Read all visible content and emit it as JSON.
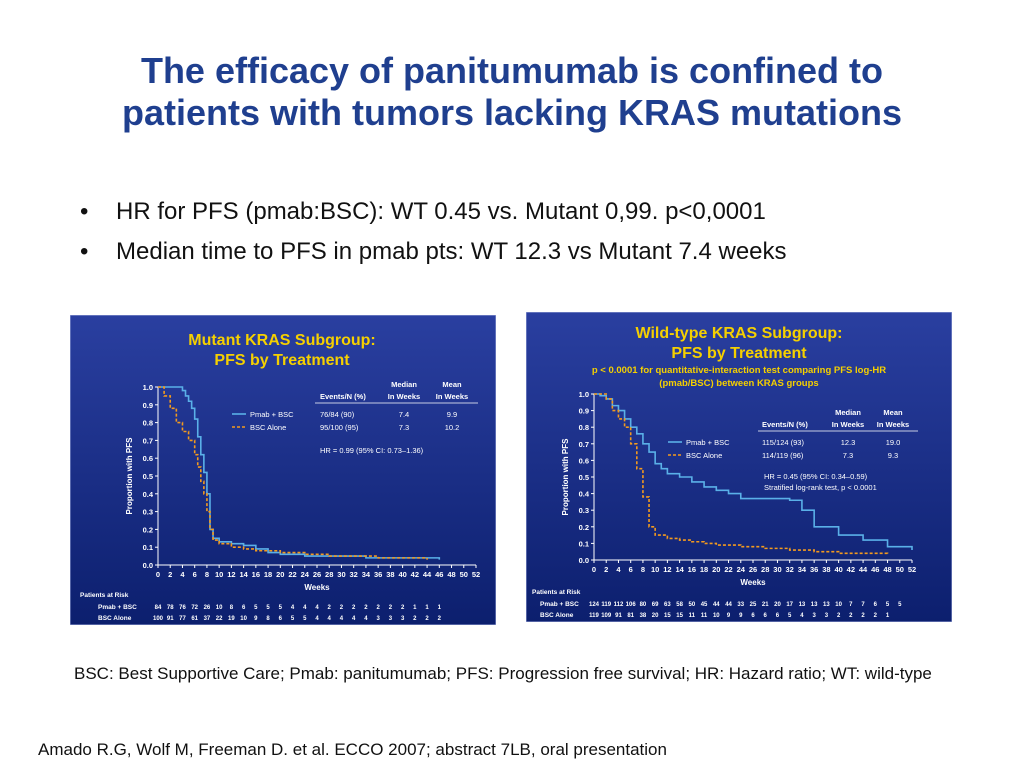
{
  "slide": {
    "title_line1": "The efficacy of panitumumab is confined to",
    "title_line2": "patients with tumors lacking KRAS mutations",
    "bullets": [
      "HR for PFS (pmab:BSC): WT 0.45 vs. Mutant 0,99. p<0,0001",
      "Median time to PFS in pmab pts: WT 12.3 vs Mutant 7.4 weeks"
    ],
    "footnote": "BSC: Best Supportive Care; Pmab: panitumumab; PFS: Progression free survival; HR: Hazard ratio; WT: wild-type",
    "citation": "Amado R.G, Wolf M, Freeman D. et al. ECCO 2007; abstract 7LB, oral presentation"
  },
  "colors": {
    "title": "#1f3f8f",
    "panel_bg": "#0c1f6e",
    "panel_title": "#f5d000",
    "pmab": "#5ab0e8",
    "bsc": "#f39a1e"
  },
  "chart_data": [
    {
      "type": "line",
      "title_line1": "Mutant KRAS Subgroup:",
      "title_line2": "PFS by Treatment",
      "subtitle_line1": "",
      "subtitle_line2": "",
      "xlabel": "Weeks",
      "ylabel": "Proportion with PFS",
      "xlim": [
        0,
        52
      ],
      "ylim": [
        0,
        1
      ],
      "x_ticks": [
        0,
        2,
        4,
        6,
        8,
        10,
        12,
        14,
        16,
        18,
        20,
        22,
        24,
        26,
        28,
        30,
        32,
        34,
        36,
        38,
        40,
        42,
        44,
        46,
        48,
        50,
        52
      ],
      "y_ticks": [
        "0.0",
        "0.1",
        "0.2",
        "0.3",
        "0.4",
        "0.5",
        "0.6",
        "0.7",
        "0.8",
        "0.9",
        "1.0"
      ],
      "table_headers": [
        "Events/N (%)",
        "Median",
        "In Weeks",
        "Mean",
        "In Weeks"
      ],
      "series": [
        {
          "name": "Pmab + BSC",
          "events": "76/84 (90)",
          "median": "7.4",
          "mean": "9.9",
          "x": [
            0,
            2,
            4,
            4.5,
            5,
            5.5,
            6,
            6.5,
            7,
            7.5,
            8,
            8.5,
            9,
            10,
            12,
            14,
            16,
            18,
            20,
            22,
            24,
            26,
            30,
            34,
            38,
            42,
            46
          ],
          "y": [
            1.0,
            1.0,
            0.98,
            0.95,
            0.92,
            0.88,
            0.82,
            0.72,
            0.62,
            0.52,
            0.4,
            0.2,
            0.15,
            0.13,
            0.12,
            0.11,
            0.09,
            0.07,
            0.06,
            0.06,
            0.05,
            0.05,
            0.05,
            0.04,
            0.04,
            0.04,
            0.03
          ]
        },
        {
          "name": "BSC Alone",
          "events": "95/100 (95)",
          "median": "7.3",
          "mean": "10.2",
          "x": [
            0,
            1,
            2,
            3,
            4,
            5,
            6,
            6.5,
            7,
            7.5,
            8,
            8.5,
            9,
            10,
            12,
            14,
            16,
            20,
            24,
            28,
            32,
            36,
            40,
            44
          ],
          "y": [
            1.0,
            0.95,
            0.88,
            0.8,
            0.75,
            0.7,
            0.62,
            0.55,
            0.47,
            0.4,
            0.3,
            0.2,
            0.14,
            0.12,
            0.1,
            0.09,
            0.08,
            0.07,
            0.06,
            0.05,
            0.05,
            0.04,
            0.04,
            0.03
          ]
        }
      ],
      "annotation_line1": "HR = 0.99 (95% CI: 0.73–1.36)",
      "annotation_line2": "",
      "risk_header": "Patients at Risk",
      "risk": [
        {
          "name": "Pmab + BSC",
          "values": [
            "84",
            "78",
            "76",
            "72",
            "26",
            "10",
            "8",
            "6",
            "5",
            "5",
            "5",
            "4",
            "4",
            "4",
            "2",
            "2",
            "2",
            "2",
            "2",
            "2",
            "2",
            "1",
            "1",
            "1"
          ]
        },
        {
          "name": "BSC Alone",
          "values": [
            "100",
            "91",
            "77",
            "61",
            "37",
            "22",
            "19",
            "10",
            "9",
            "8",
            "6",
            "5",
            "5",
            "4",
            "4",
            "4",
            "4",
            "4",
            "3",
            "3",
            "3",
            "2",
            "2",
            "2"
          ]
        }
      ]
    },
    {
      "type": "line",
      "title_line1": "Wild-type KRAS Subgroup:",
      "title_line2": "PFS by Treatment",
      "subtitle_line1": "p < 0.0001 for quantitative-interaction test comparing PFS log-HR",
      "subtitle_line2": "(pmab/BSC) between KRAS groups",
      "xlabel": "Weeks",
      "ylabel": "Proportion with PFS",
      "xlim": [
        0,
        52
      ],
      "ylim": [
        0,
        1
      ],
      "x_ticks": [
        0,
        2,
        4,
        6,
        8,
        10,
        12,
        14,
        16,
        18,
        20,
        22,
        24,
        26,
        28,
        30,
        32,
        34,
        36,
        38,
        40,
        42,
        44,
        46,
        48,
        50,
        52
      ],
      "y_ticks": [
        "0.0",
        "0.1",
        "0.2",
        "0.3",
        "0.4",
        "0.5",
        "0.6",
        "0.7",
        "0.8",
        "0.9",
        "1.0"
      ],
      "table_headers": [
        "Events/N (%)",
        "Median",
        "In Weeks",
        "Mean",
        "In Weeks"
      ],
      "series": [
        {
          "name": "Pmab + BSC",
          "events": "115/124 (93)",
          "median": "12.3",
          "mean": "19.0",
          "x": [
            0,
            1,
            2,
            3,
            4,
            5,
            6,
            7,
            8,
            9,
            10,
            11,
            12,
            14,
            16,
            18,
            20,
            22,
            24,
            26,
            28,
            30,
            32,
            34,
            36,
            40,
            44,
            48,
            52
          ],
          "y": [
            1.0,
            0.99,
            0.97,
            0.93,
            0.9,
            0.85,
            0.8,
            0.76,
            0.7,
            0.65,
            0.58,
            0.55,
            0.52,
            0.5,
            0.47,
            0.44,
            0.42,
            0.4,
            0.37,
            0.37,
            0.37,
            0.37,
            0.36,
            0.3,
            0.2,
            0.15,
            0.12,
            0.08,
            0.06
          ]
        },
        {
          "name": "BSC Alone",
          "events": "114/119 (96)",
          "median": "7.3",
          "mean": "9.3",
          "x": [
            0,
            2,
            3,
            4,
            5,
            6,
            7,
            8,
            9,
            10,
            12,
            14,
            16,
            18,
            20,
            24,
            28,
            32,
            36,
            40,
            44,
            48
          ],
          "y": [
            1.0,
            0.97,
            0.9,
            0.85,
            0.8,
            0.7,
            0.55,
            0.38,
            0.2,
            0.15,
            0.13,
            0.12,
            0.11,
            0.1,
            0.09,
            0.08,
            0.07,
            0.06,
            0.05,
            0.04,
            0.04,
            0.03
          ]
        }
      ],
      "annotation_line1": "HR = 0.45 (95% CI: 0.34–0.59)",
      "annotation_line2": "Stratified log-rank test, p < 0.0001",
      "risk_header": "Patients at Risk",
      "risk": [
        {
          "name": "Pmab + BSC",
          "values": [
            "124",
            "119",
            "112",
            "106",
            "80",
            "69",
            "63",
            "58",
            "50",
            "45",
            "44",
            "44",
            "33",
            "25",
            "21",
            "20",
            "17",
            "13",
            "13",
            "13",
            "10",
            "7",
            "7",
            "6",
            "5",
            "5"
          ]
        },
        {
          "name": "BSC Alone",
          "values": [
            "119",
            "109",
            "91",
            "81",
            "38",
            "20",
            "15",
            "15",
            "11",
            "11",
            "10",
            "9",
            "9",
            "6",
            "6",
            "6",
            "5",
            "4",
            "3",
            "3",
            "2",
            "2",
            "2",
            "2",
            "1"
          ]
        }
      ]
    }
  ]
}
